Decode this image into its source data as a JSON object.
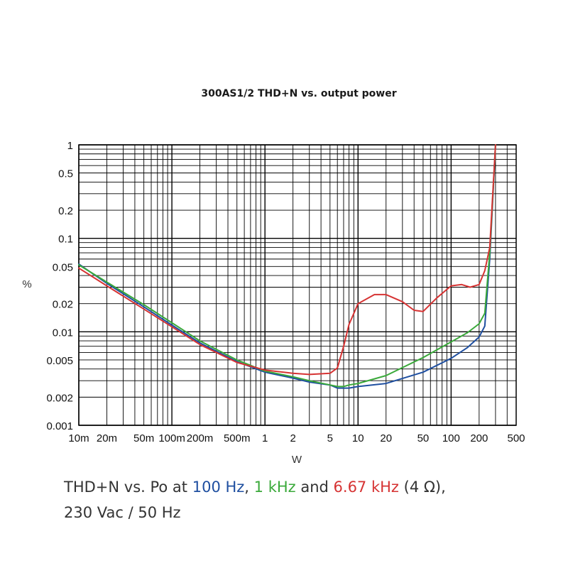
{
  "chart_data": {
    "type": "line",
    "title": "300AS1/2 THD+N vs. output power",
    "xlabel": "W",
    "ylabel": "%",
    "xscale": "log",
    "yscale": "log",
    "xlim": [
      0.01,
      500
    ],
    "ylim": [
      0.001,
      1
    ],
    "x_tick_labels": [
      "10m",
      "20m",
      "50m",
      "100m",
      "200m",
      "500m",
      "1",
      "2",
      "5",
      "10",
      "20",
      "50",
      "100",
      "200",
      "500"
    ],
    "x_tick_values": [
      0.01,
      0.02,
      0.05,
      0.1,
      0.2,
      0.5,
      1,
      2,
      5,
      10,
      20,
      50,
      100,
      200,
      500
    ],
    "y_tick_labels": [
      "1",
      "0.5",
      "0.2",
      "0.1",
      "0.05",
      "0.02",
      "0.01",
      "0.005",
      "0.002",
      "0.001"
    ],
    "y_tick_values": [
      1,
      0.5,
      0.2,
      0.1,
      0.05,
      0.02,
      0.01,
      0.005,
      0.002,
      0.001
    ],
    "grid": true,
    "series": [
      {
        "name": "100 Hz",
        "color": "#1f4fa0",
        "x": [
          0.01,
          0.02,
          0.05,
          0.1,
          0.2,
          0.5,
          1,
          2,
          3,
          5,
          6,
          7,
          8,
          10,
          20,
          50,
          100,
          150,
          200,
          230,
          260,
          300
        ],
        "y": [
          0.053,
          0.033,
          0.0185,
          0.0118,
          0.0076,
          0.0048,
          0.0037,
          0.0032,
          0.0029,
          0.0027,
          0.0025,
          0.0025,
          0.0025,
          0.0026,
          0.0028,
          0.0037,
          0.0052,
          0.0068,
          0.0088,
          0.0115,
          0.06,
          1.0
        ]
      },
      {
        "name": "1 kHz",
        "color": "#3aa93a",
        "x": [
          0.01,
          0.02,
          0.05,
          0.1,
          0.2,
          0.5,
          1,
          2,
          3,
          5,
          6,
          7,
          8,
          10,
          20,
          50,
          100,
          150,
          200,
          230,
          260,
          300
        ],
        "y": [
          0.052,
          0.034,
          0.0195,
          0.0125,
          0.008,
          0.005,
          0.0038,
          0.0033,
          0.003,
          0.0027,
          0.0026,
          0.0026,
          0.0027,
          0.0028,
          0.0034,
          0.0053,
          0.0078,
          0.0098,
          0.0122,
          0.0158,
          0.07,
          1.0
        ]
      },
      {
        "name": "6.67 kHz",
        "color": "#d63333",
        "x": [
          0.01,
          0.02,
          0.05,
          0.1,
          0.2,
          0.5,
          1,
          2,
          3,
          5,
          6,
          7,
          8,
          10,
          15,
          20,
          30,
          40,
          50,
          70,
          100,
          130,
          160,
          200,
          230,
          260,
          300
        ],
        "y": [
          0.048,
          0.031,
          0.0175,
          0.0113,
          0.0073,
          0.0047,
          0.0039,
          0.0036,
          0.0035,
          0.0036,
          0.0041,
          0.007,
          0.012,
          0.02,
          0.025,
          0.025,
          0.021,
          0.017,
          0.0165,
          0.023,
          0.031,
          0.032,
          0.03,
          0.032,
          0.045,
          0.08,
          1.0
        ]
      }
    ]
  },
  "caption": {
    "prefix": "THD+N vs. Po at ",
    "s1": "100 Hz",
    "sep1": ", ",
    "s2": "1 kHz",
    "sep2": " and ",
    "s3": "6.67 kHz",
    "suffix": " (4 Ω),",
    "line2": "230 Vac / 50 Hz"
  },
  "colors": {
    "blue": "#1f4fa0",
    "green": "#3aa93a",
    "red": "#d63333"
  }
}
